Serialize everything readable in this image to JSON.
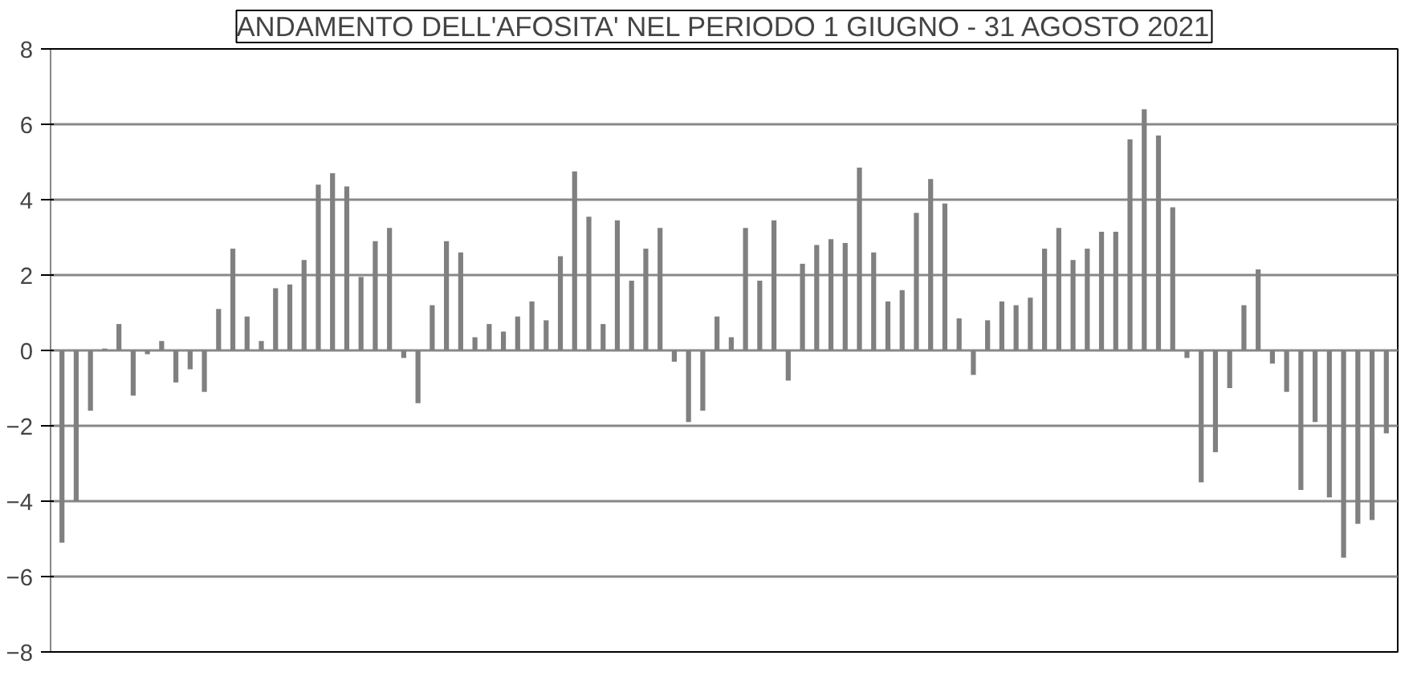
{
  "chart_data": {
    "type": "bar",
    "title": "ANDAMENTO DELL'AFOSITA' NEL PERIODO 1 GIUGNO - 31 AGOSTO 2021",
    "categories": [
      null,
      null,
      null,
      null,
      null,
      null,
      null,
      null,
      null,
      null,
      null,
      null,
      null,
      null,
      null,
      null,
      null,
      null,
      null,
      null,
      null,
      null,
      null,
      null,
      null,
      null,
      null,
      null,
      null,
      null,
      null,
      null,
      null,
      null,
      null,
      null,
      null,
      null,
      null,
      null,
      null,
      null,
      null,
      null,
      null,
      null,
      null,
      null,
      null,
      null,
      null,
      null,
      null,
      null,
      null,
      null,
      null,
      null,
      null,
      null,
      null,
      null,
      null,
      null,
      null,
      null,
      null,
      null,
      null,
      null,
      null,
      null,
      null,
      null,
      null,
      null,
      null,
      null,
      null,
      null,
      null,
      null,
      null,
      null,
      null,
      null,
      null,
      null,
      null,
      null,
      null,
      null,
      null,
      null
    ],
    "values": [
      -5.1,
      -4.0,
      -1.6,
      0.05,
      0.7,
      -1.2,
      -0.1,
      0.25,
      -0.85,
      -0.5,
      -1.1,
      1.1,
      2.7,
      0.9,
      0.25,
      1.65,
      1.75,
      2.4,
      4.4,
      4.7,
      4.35,
      1.95,
      2.9,
      3.25,
      -0.2,
      -1.4,
      1.2,
      2.9,
      2.6,
      0.35,
      0.7,
      0.5,
      0.9,
      1.3,
      0.8,
      2.5,
      4.75,
      3.55,
      0.7,
      3.45,
      1.85,
      2.7,
      3.25,
      -0.3,
      -1.9,
      -1.6,
      0.9,
      0.35,
      3.25,
      1.85,
      3.45,
      -0.8,
      2.3,
      2.8,
      2.95,
      2.85,
      4.85,
      2.6,
      1.3,
      1.6,
      3.65,
      4.55,
      3.9,
      0.85,
      -0.65,
      0.8,
      1.3,
      1.2,
      1.4,
      2.7,
      3.25,
      2.4,
      2.7,
      3.15,
      3.15,
      5.6,
      6.4,
      5.7,
      3.8,
      -0.2,
      -3.5,
      -2.7,
      -1.0,
      1.2,
      2.15,
      -0.35,
      -1.1,
      -3.7,
      -1.9,
      -3.9,
      -5.5,
      -4.6,
      -4.5,
      -2.2
    ],
    "color": "#808080",
    "ylim": [
      -8,
      8
    ],
    "yticks": [
      -8,
      -6,
      -4,
      -2,
      0,
      2,
      4,
      6,
      8
    ],
    "grid": "y"
  }
}
